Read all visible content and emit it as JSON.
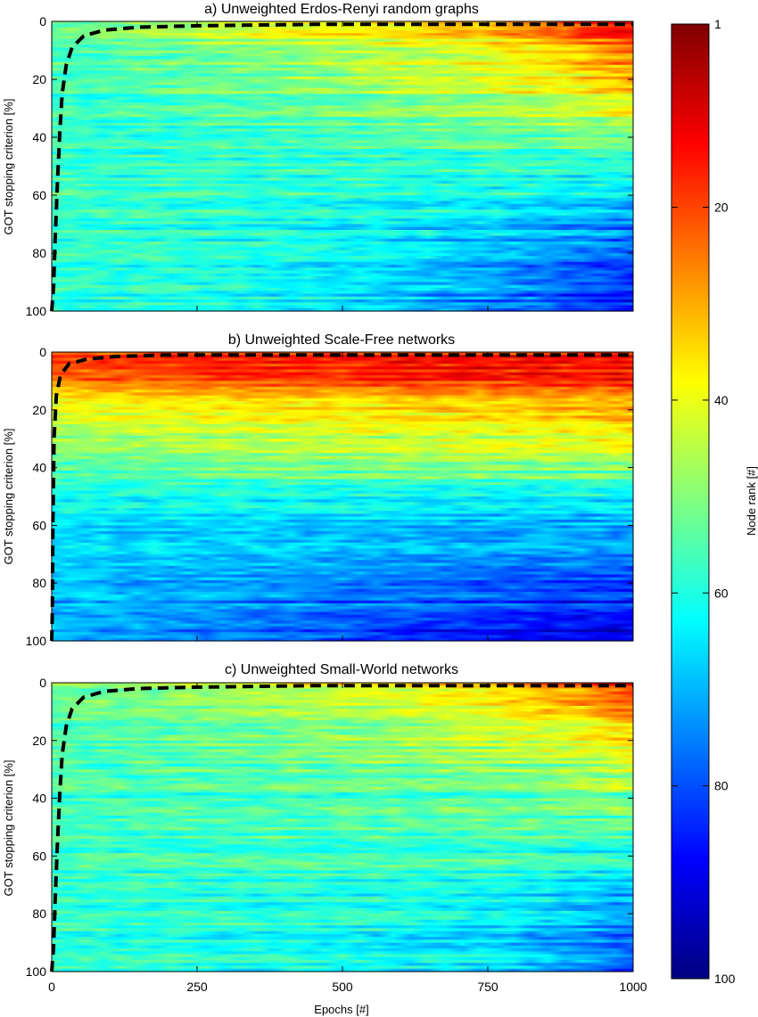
{
  "figure": {
    "xlabel": "Epochs [#]",
    "ylabel": "GOT stopping criterion [%]"
  },
  "chart_data": [
    {
      "type": "heatmap",
      "title": "a) Unweighted Erdos-Renyi random graphs",
      "xlabel": "",
      "ylabel": "GOT stopping criterion [%]",
      "xlim": [
        0,
        1000
      ],
      "ylim": [
        0,
        100
      ],
      "y_inverted": true,
      "xticks": [
        0,
        250,
        500,
        750,
        1000
      ],
      "yticks": [
        0,
        20,
        40,
        60,
        80,
        100
      ],
      "x_tick_labels_shown": false,
      "color_field_node_rank": {
        "rows_percent": [
          0,
          10,
          25,
          40,
          60,
          80,
          100
        ],
        "cols_epochs": [
          0,
          250,
          500,
          750,
          900,
          1000
        ],
        "values": [
          [
            52,
            42,
            35,
            28,
            18,
            8
          ],
          [
            55,
            50,
            45,
            38,
            30,
            22
          ],
          [
            57,
            55,
            50,
            45,
            40,
            34
          ],
          [
            58,
            58,
            56,
            54,
            52,
            50
          ],
          [
            57,
            58,
            60,
            62,
            64,
            66
          ],
          [
            58,
            60,
            63,
            70,
            76,
            80
          ],
          [
            58,
            61,
            66,
            74,
            82,
            86
          ]
        ]
      },
      "dashed_boundary": {
        "x": [
          0,
          3,
          6,
          10,
          14,
          18,
          25,
          35,
          55,
          90,
          150,
          250,
          450,
          1000
        ],
        "y": [
          100,
          92,
          75,
          55,
          38,
          25,
          15,
          9,
          5,
          3,
          2,
          1.5,
          1,
          1
        ]
      }
    },
    {
      "type": "heatmap",
      "title": "b) Unweighted Scale-Free networks",
      "xlabel": "",
      "ylabel": "GOT stopping criterion [%]",
      "xlim": [
        0,
        1000
      ],
      "ylim": [
        0,
        100
      ],
      "y_inverted": true,
      "xticks": [
        0,
        250,
        500,
        750,
        1000
      ],
      "yticks": [
        0,
        20,
        40,
        60,
        80,
        100
      ],
      "x_tick_labels_shown": false,
      "color_field_node_rank": {
        "rows_percent": [
          0,
          5,
          12,
          20,
          35,
          50,
          65,
          80,
          100
        ],
        "cols_epochs": [
          0,
          250,
          500,
          750,
          900,
          1000
        ],
        "values": [
          [
            20,
            17,
            16,
            15,
            15,
            14
          ],
          [
            22,
            18,
            17,
            16,
            16,
            15
          ],
          [
            28,
            25,
            23,
            21,
            20,
            19
          ],
          [
            40,
            38,
            36,
            34,
            32,
            30
          ],
          [
            52,
            50,
            48,
            46,
            45,
            44
          ],
          [
            60,
            60,
            60,
            61,
            62,
            62
          ],
          [
            66,
            68,
            70,
            72,
            73,
            74
          ],
          [
            70,
            72,
            76,
            80,
            82,
            84
          ],
          [
            70,
            74,
            80,
            86,
            88,
            90
          ]
        ]
      },
      "dashed_boundary": {
        "x": [
          0,
          1,
          2,
          4,
          8,
          15,
          30,
          60,
          110,
          200,
          1000
        ],
        "y": [
          100,
          90,
          60,
          30,
          15,
          8,
          4,
          2.5,
          1.5,
          1,
          1
        ]
      }
    },
    {
      "type": "heatmap",
      "title": "c) Unweighted Small-World networks",
      "xlabel": "Epochs [#]",
      "ylabel": "GOT stopping criterion [%]",
      "xlim": [
        0,
        1000
      ],
      "ylim": [
        0,
        100
      ],
      "y_inverted": true,
      "xticks": [
        0,
        250,
        500,
        750,
        1000
      ],
      "yticks": [
        0,
        20,
        40,
        60,
        80,
        100
      ],
      "x_tick_labels_shown": true,
      "color_field_node_rank": {
        "rows_percent": [
          0,
          10,
          25,
          40,
          60,
          80,
          100
        ],
        "cols_epochs": [
          0,
          250,
          500,
          750,
          900,
          1000
        ],
        "values": [
          [
            52,
            45,
            38,
            32,
            22,
            14
          ],
          [
            55,
            52,
            48,
            42,
            35,
            28
          ],
          [
            56,
            55,
            52,
            48,
            45,
            42
          ],
          [
            57,
            57,
            56,
            54,
            52,
            50
          ],
          [
            57,
            58,
            58,
            58,
            60,
            62
          ],
          [
            58,
            59,
            60,
            63,
            68,
            72
          ],
          [
            58,
            60,
            62,
            66,
            74,
            80
          ]
        ]
      },
      "dashed_boundary": {
        "x": [
          0,
          3,
          6,
          10,
          14,
          18,
          25,
          35,
          55,
          90,
          150,
          250,
          450,
          1000
        ],
        "y": [
          100,
          92,
          75,
          55,
          38,
          25,
          15,
          9,
          5,
          3,
          2,
          1.5,
          1,
          1
        ]
      }
    }
  ],
  "colorbar": {
    "label": "Node rank [#]",
    "colormap": "jet",
    "range": [
      1,
      100
    ],
    "ticks": [
      1,
      20,
      40,
      60,
      80,
      100
    ],
    "reversed": true
  }
}
